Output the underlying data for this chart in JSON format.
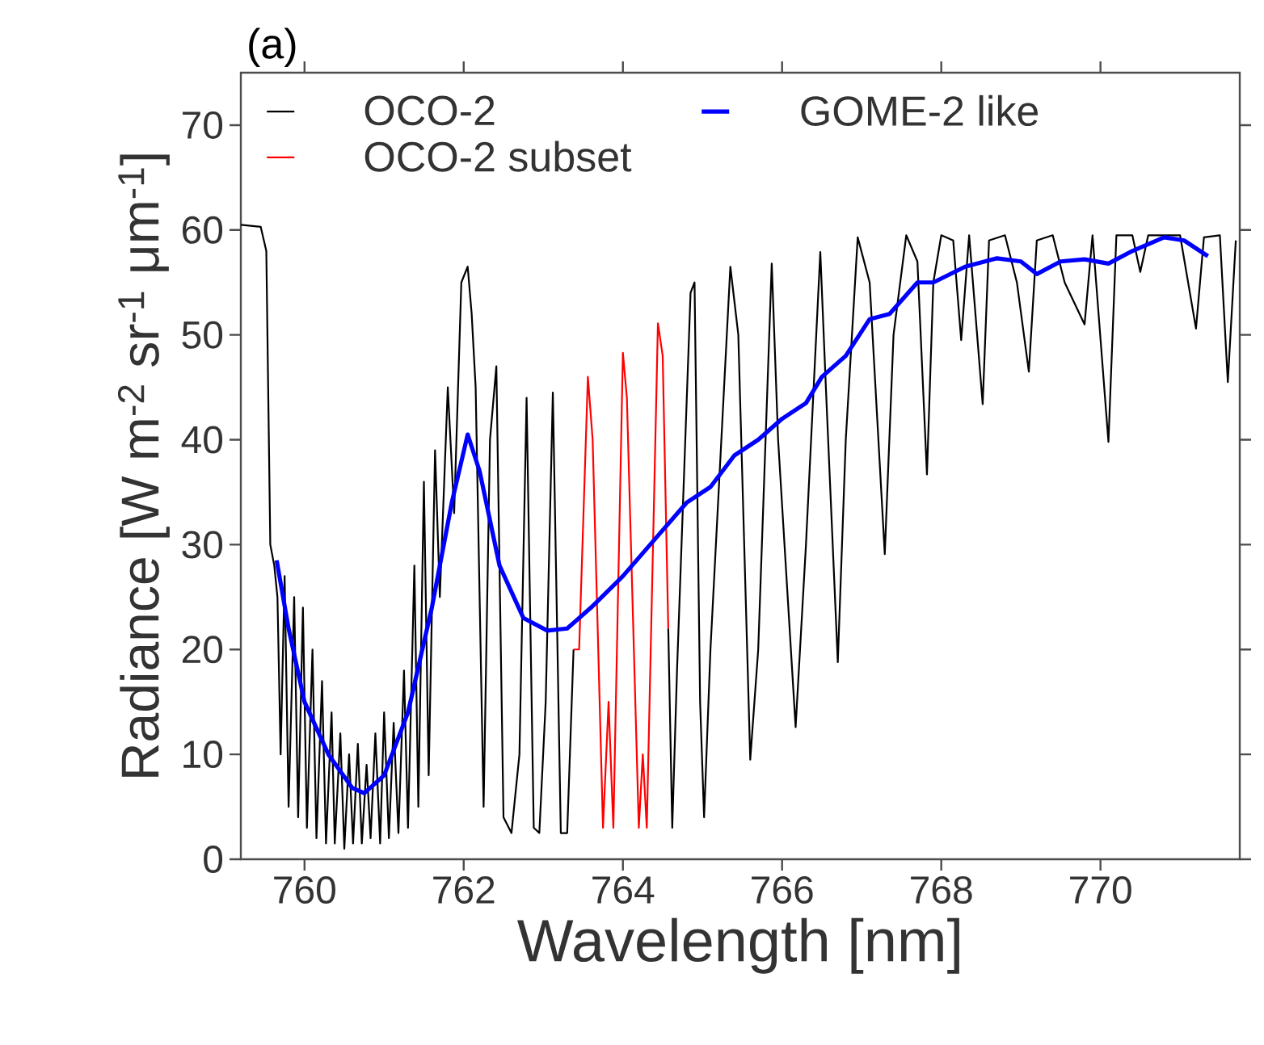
{
  "chart_data": {
    "type": "line",
    "title": "(a)",
    "xlabel": "Wavelength [nm]",
    "ylabel": "Radiance [W m$^{-2}$ sr$^{-1}$ μm$^{-1}$]",
    "xlim": [
      759.2,
      771.75
    ],
    "ylim": [
      0,
      75
    ],
    "xticks": [
      760,
      762,
      764,
      766,
      768,
      770
    ],
    "yticks": [
      0,
      10,
      20,
      30,
      40,
      50,
      60,
      70
    ],
    "legend": "top",
    "series": [
      {
        "name": "OCO-2",
        "color": "#000000",
        "x": [
          759.2,
          759.45,
          759.52,
          759.57,
          759.62,
          759.66,
          759.7,
          759.75,
          759.8,
          759.87,
          759.92,
          759.98,
          760.03,
          760.1,
          760.15,
          760.22,
          760.27,
          760.34,
          760.38,
          760.45,
          760.5,
          760.56,
          760.61,
          760.67,
          760.72,
          760.78,
          760.83,
          760.89,
          760.95,
          761.0,
          761.06,
          761.12,
          761.18,
          761.25,
          761.3,
          761.38,
          761.43,
          761.5,
          761.56,
          761.64,
          761.7,
          761.8,
          761.88,
          761.97,
          762.05,
          762.1,
          762.15,
          762.25,
          762.33,
          762.41,
          762.5,
          762.6,
          762.7,
          762.79,
          762.88,
          762.95,
          763.03,
          763.12,
          763.22,
          763.3,
          763.38,
          763.45,
          764.57,
          764.62,
          764.68,
          764.85,
          764.9,
          764.97,
          765.02,
          765.1,
          765.35,
          765.45,
          765.6,
          765.7,
          765.87,
          765.95,
          766.17,
          766.3,
          766.48,
          766.55,
          766.7,
          766.8,
          766.95,
          767.1,
          767.29,
          767.4,
          767.56,
          767.7,
          767.82,
          767.9,
          768.0,
          768.15,
          768.25,
          768.35,
          768.52,
          768.6,
          768.8,
          768.95,
          769.1,
          769.2,
          769.4,
          769.55,
          769.8,
          769.9,
          770.1,
          770.2,
          770.4,
          770.5,
          770.6,
          771.0,
          771.2,
          771.3,
          771.5,
          771.6,
          771.7
        ],
        "values": [
          60.5,
          60.3,
          58,
          30,
          28,
          25,
          10,
          27,
          5,
          25,
          4,
          24,
          3,
          20,
          2,
          17,
          1.5,
          14,
          1.5,
          12,
          1,
          10,
          1.5,
          11,
          1.5,
          9,
          2,
          12,
          1.5,
          14,
          2,
          13,
          2.5,
          18,
          3,
          28,
          5,
          36,
          8,
          39,
          25,
          45,
          33,
          55,
          56.5,
          52,
          45,
          5,
          40,
          47,
          4,
          2.5,
          10,
          44,
          3,
          2.5,
          15,
          44.5,
          2.5,
          2.5,
          20,
          null,
          22,
          3,
          18,
          54,
          55,
          15,
          4,
          20,
          56.5,
          50,
          9.5,
          20,
          56.8,
          40,
          12.6,
          30,
          57.9,
          45,
          18.8,
          40,
          59.3,
          55,
          29.1,
          50,
          59.5,
          57,
          36.7,
          55,
          59.5,
          59,
          49.5,
          59.5,
          43.4,
          59,
          59.5,
          55,
          46.5,
          59,
          59.5,
          55,
          51,
          59.5,
          39.8,
          59.5,
          59.5,
          56,
          59.5,
          59.5,
          50.6,
          59.3,
          59.5,
          45.5,
          59
        ]
      },
      {
        "name": "OCO-2 subset",
        "color": "#ff0000",
        "x": [
          763.38,
          763.45,
          763.56,
          763.62,
          763.75,
          763.82,
          763.88,
          764.0,
          764.05,
          764.2,
          764.25,
          764.3,
          764.44,
          764.5,
          764.57
        ],
        "values": [
          20,
          20,
          46,
          40,
          3,
          15,
          3,
          48.3,
          44,
          3,
          10,
          3,
          51.1,
          48,
          22
        ]
      },
      {
        "name": "GOME-2 like",
        "color": "#0000ff",
        "x": [
          759.65,
          759.8,
          760.0,
          760.3,
          760.6,
          760.75,
          761.0,
          761.3,
          761.6,
          761.85,
          762.05,
          762.2,
          762.45,
          762.75,
          763.05,
          763.3,
          763.6,
          764.0,
          764.4,
          764.8,
          765.1,
          765.4,
          765.7,
          766.0,
          766.3,
          766.5,
          766.8,
          767.1,
          767.35,
          767.7,
          767.9,
          768.3,
          768.7,
          769.0,
          769.2,
          769.5,
          769.8,
          770.1,
          770.4,
          770.8,
          771.05,
          771.35
        ],
        "values": [
          28.5,
          22,
          15,
          10,
          6.8,
          6.3,
          8,
          14,
          24,
          34,
          40.5,
          37,
          28,
          23,
          21.8,
          22,
          24,
          27,
          30.5,
          34,
          35.5,
          38.5,
          40,
          42,
          43.5,
          46,
          48,
          51.5,
          52,
          55,
          55,
          56.5,
          57.3,
          57,
          55.8,
          57,
          57.2,
          56.8,
          58,
          59.3,
          59,
          57.5
        ]
      }
    ]
  }
}
